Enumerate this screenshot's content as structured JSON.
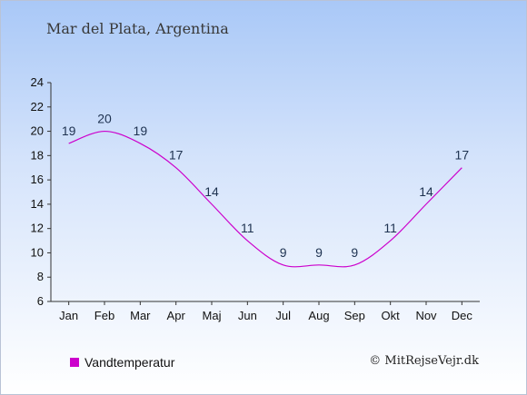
{
  "header": {
    "title": "Mar del Plata, Argentina"
  },
  "legend": {
    "label": "Vandtemperatur"
  },
  "footer": {
    "credit": "© MitRejseVejr.dk"
  },
  "chart_data": {
    "type": "line",
    "categories": [
      "Jan",
      "Feb",
      "Mar",
      "Apr",
      "Maj",
      "Jun",
      "Jul",
      "Aug",
      "Sep",
      "Okt",
      "Nov",
      "Dec"
    ],
    "series": [
      {
        "name": "Vandtemperatur",
        "values": [
          19,
          20,
          19,
          17,
          14,
          11,
          9,
          9,
          9,
          11,
          14,
          17
        ],
        "color": "#cc00cc"
      }
    ],
    "title": "Mar del Plata, Argentina",
    "xlabel": "",
    "ylabel": "",
    "ylim": [
      6,
      24
    ],
    "yticks": [
      6,
      8,
      10,
      12,
      14,
      16,
      18,
      20,
      22,
      24
    ],
    "grid": false,
    "legend_position": "bottom-left",
    "data_label_color": "#1e3250"
  }
}
